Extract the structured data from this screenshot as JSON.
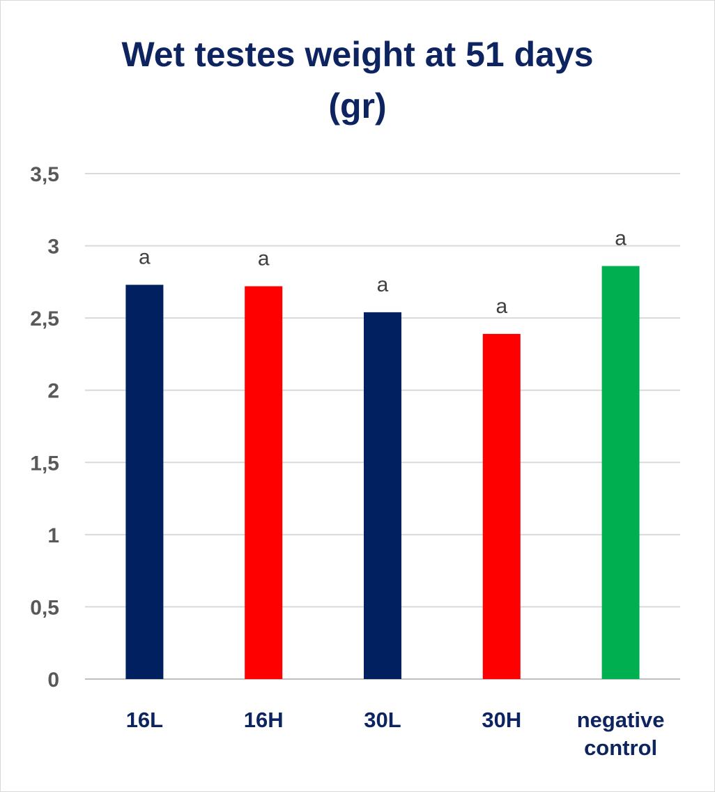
{
  "chart_data": {
    "type": "bar",
    "title_lines": [
      "Wet testes weight at 51 days",
      "(gr)"
    ],
    "categories": [
      [
        "16L"
      ],
      [
        "16H"
      ],
      [
        "30L"
      ],
      [
        "30H"
      ],
      [
        "negative",
        "control"
      ]
    ],
    "values": [
      2.73,
      2.72,
      2.54,
      2.39,
      2.86
    ],
    "bar_colors": [
      "#002060",
      "#ff0000",
      "#002060",
      "#ff0000",
      "#00b050"
    ],
    "data_labels": [
      "a",
      "a",
      "a",
      "a",
      "a"
    ],
    "y_ticks": [
      "0",
      "0,5",
      "1",
      "1,5",
      "2",
      "2,5",
      "3",
      "3,5"
    ],
    "y_tick_values": [
      0,
      0.5,
      1,
      1.5,
      2,
      2.5,
      3,
      3.5
    ],
    "ylim": [
      0,
      3.5
    ],
    "xlabel": "",
    "ylabel": "",
    "grid": true,
    "legend": "none"
  }
}
